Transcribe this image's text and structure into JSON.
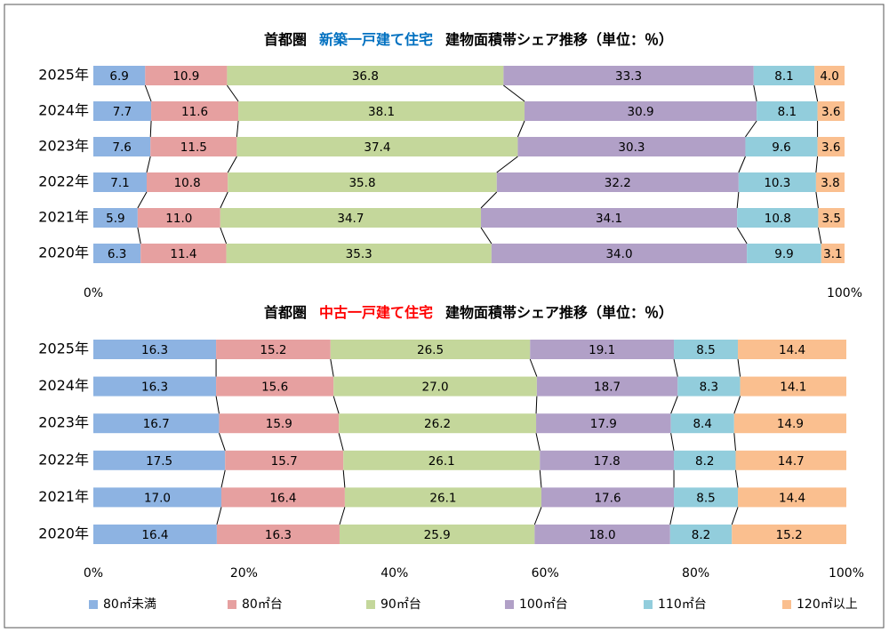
{
  "chart_data": [
    {
      "type": "stacked-bar-100",
      "title": [
        {
          "text": "首都圏",
          "color": "#000000"
        },
        {
          "text": "新築一戸建て住宅",
          "color": "#0070c0"
        },
        {
          "text": "建物面積帯シェア推移（単位：％）",
          "color": "#000000"
        }
      ],
      "categories": [
        "2025年",
        "2024年",
        "2023年",
        "2022年",
        "2021年",
        "2020年"
      ],
      "xlim": [
        0,
        100
      ],
      "xticks": [
        {
          "value": 0,
          "label": "0%"
        },
        {
          "value": 100,
          "label": "100%"
        }
      ],
      "series": [
        {
          "color": "#8db3e2",
          "values": [
            6.9,
            7.7,
            7.6,
            7.1,
            5.9,
            6.3
          ],
          "value_labels": [
            "6.9",
            "7.7",
            "7.6",
            "7.1",
            "5.9",
            "6.3"
          ]
        },
        {
          "color": "#e6a0a0",
          "values": [
            10.9,
            11.6,
            11.5,
            10.8,
            11.0,
            11.4
          ],
          "value_labels": [
            "10.9",
            "11.6",
            "11.5",
            "10.8",
            "11.0",
            "11.4"
          ]
        },
        {
          "color": "#c4d79b",
          "values": [
            36.8,
            38.1,
            37.4,
            35.8,
            34.7,
            35.3
          ],
          "value_labels": [
            "36.8",
            "38.1",
            "37.4",
            "35.8",
            "34.7",
            "35.3"
          ]
        },
        {
          "color": "#b1a0c7",
          "values": [
            33.3,
            30.9,
            30.3,
            32.2,
            34.1,
            34.0
          ],
          "value_labels": [
            "33.3",
            "30.9",
            "30.3",
            "32.2",
            "34.1",
            "34.0"
          ]
        },
        {
          "color": "#92cddc",
          "values": [
            8.1,
            8.1,
            9.6,
            10.3,
            10.8,
            9.9
          ],
          "value_labels": [
            "8.1",
            "8.1",
            "9.6",
            "10.3",
            "10.8",
            "9.9"
          ]
        },
        {
          "color": "#fabf8f",
          "values": [
            4.0,
            3.6,
            3.6,
            3.8,
            3.5,
            3.1
          ],
          "value_labels": [
            "4.0",
            "3.6",
            "3.6",
            "3.8",
            "3.5",
            "3.1"
          ]
        }
      ]
    },
    {
      "type": "stacked-bar-100",
      "title": [
        {
          "text": "首都圏",
          "color": "#000000"
        },
        {
          "text": "中古一戸建て住宅",
          "color": "#ff0000"
        },
        {
          "text": "建物面積帯シェア推移（単位：％）",
          "color": "#000000"
        }
      ],
      "categories": [
        "2025年",
        "2024年",
        "2023年",
        "2022年",
        "2021年",
        "2020年"
      ],
      "xlim": [
        0,
        100
      ],
      "xticks": [
        {
          "value": 0,
          "label": "0%"
        },
        {
          "value": 20,
          "label": "20%"
        },
        {
          "value": 40,
          "label": "40%"
        },
        {
          "value": 60,
          "label": "60%"
        },
        {
          "value": 80,
          "label": "80%"
        },
        {
          "value": 100,
          "label": "100%"
        }
      ],
      "legend": "bottom",
      "series": [
        {
          "name": "80㎡未満",
          "color": "#8db3e2",
          "values": [
            16.3,
            16.3,
            16.7,
            17.5,
            17.0,
            16.4
          ],
          "value_labels": [
            "16.3",
            "16.3",
            "16.7",
            "17.5",
            "17.0",
            "16.4"
          ]
        },
        {
          "name": "80㎡台",
          "color": "#e6a0a0",
          "values": [
            15.2,
            15.6,
            15.9,
            15.7,
            16.4,
            16.3
          ],
          "value_labels": [
            "15.2",
            "15.6",
            "15.9",
            "15.7",
            "16.4",
            "16.3"
          ]
        },
        {
          "name": "90㎡台",
          "color": "#c4d79b",
          "values": [
            26.5,
            27.0,
            26.2,
            26.1,
            26.1,
            25.9
          ],
          "value_labels": [
            "26.5",
            "27.0",
            "26.2",
            "26.1",
            "26.1",
            "25.9"
          ]
        },
        {
          "name": "100㎡台",
          "color": "#b1a0c7",
          "values": [
            19.1,
            18.7,
            17.9,
            17.8,
            17.6,
            18.0
          ],
          "value_labels": [
            "19.1",
            "18.7",
            "17.9",
            "17.8",
            "17.6",
            "18.0"
          ]
        },
        {
          "name": "110㎡台",
          "color": "#92cddc",
          "values": [
            8.5,
            8.3,
            8.4,
            8.2,
            8.5,
            8.2
          ],
          "value_labels": [
            "8.5",
            "8.3",
            "8.4",
            "8.2",
            "8.5",
            "8.2"
          ]
        },
        {
          "name": "120㎡以上",
          "color": "#fabf8f",
          "values": [
            14.4,
            14.1,
            14.9,
            14.7,
            14.4,
            15.2
          ],
          "value_labels": [
            "14.4",
            "14.1",
            "14.9",
            "14.7",
            "14.4",
            "15.2"
          ]
        }
      ]
    }
  ]
}
